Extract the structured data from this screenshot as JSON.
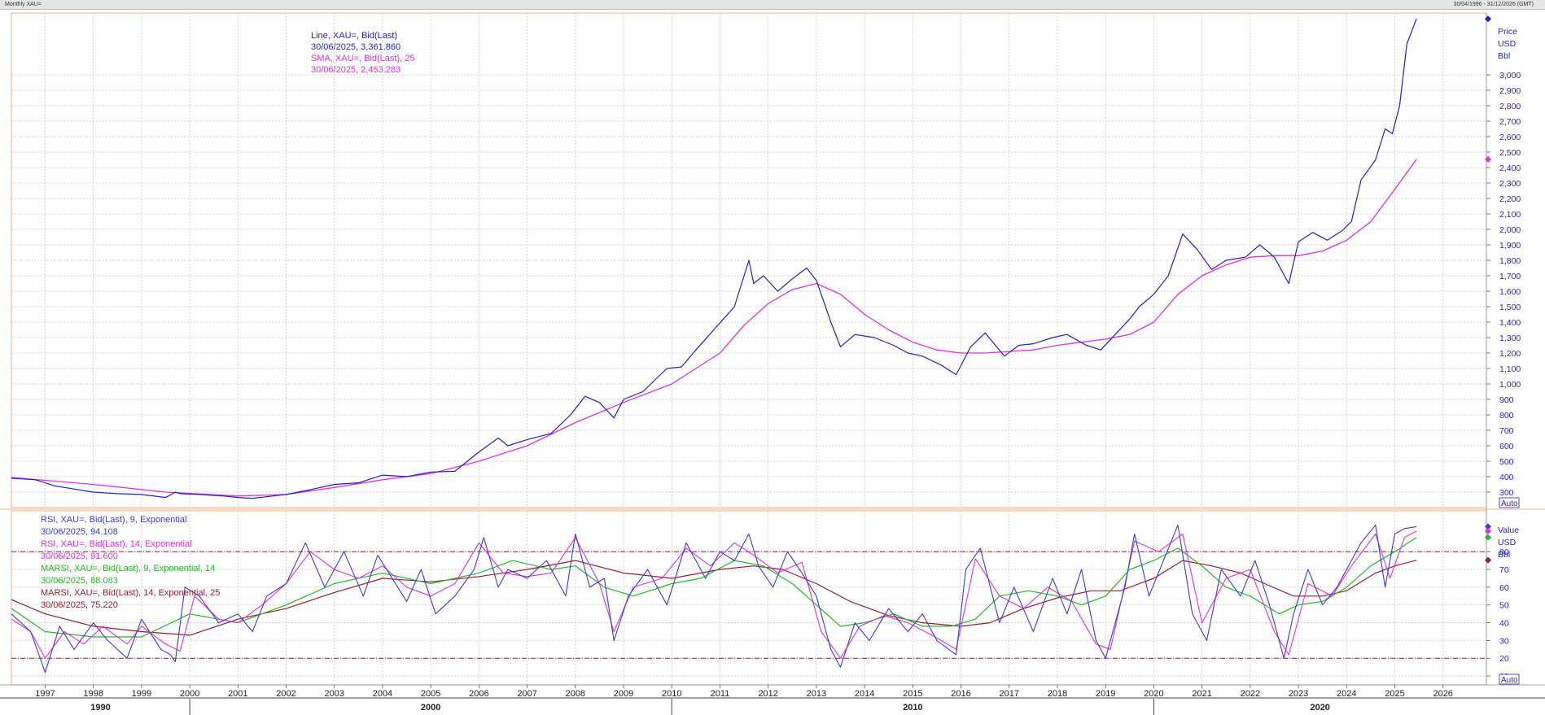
{
  "window": {
    "title": "Monthly XAU=",
    "range": "30/04/1996 - 31/12/2026 (GMT)"
  },
  "colors": {
    "price": "#1f1fd6",
    "sma": "#e52ee5",
    "rsi9": "#3a3ae0",
    "rsi14": "#e52ee5",
    "marsi9": "#22bb22",
    "marsi25": "#9b1d2d",
    "grid": "#c8c8c8",
    "border": "#f2b48a",
    "hline": "#9b1d2d"
  },
  "price_panel": {
    "legend": [
      {
        "text": "Line, XAU=, Bid(Last)",
        "color": "#1f1fd6"
      },
      {
        "text": "30/06/2025, 3,361.860",
        "color": "#1f1fd6"
      },
      {
        "text": "SMA, XAU=, Bid(Last),  25",
        "color": "#e52ee5"
      },
      {
        "text": "30/06/2025, 2,453.283",
        "color": "#e52ee5"
      }
    ],
    "axis_header": [
      "Price",
      "USD",
      "Bbl"
    ],
    "auto_label": "Auto"
  },
  "rsi_panel": {
    "legend": [
      {
        "text": "RSI, XAU=, Bid(Last),  9, Exponential",
        "color": "#3a3ae0"
      },
      {
        "text": "30/06/2025, 94.108",
        "color": "#3a3ae0"
      },
      {
        "text": "RSI, XAU=, Bid(Last),  14, Exponential",
        "color": "#e52ee5"
      },
      {
        "text": "30/06/2025, 91.600",
        "color": "#e52ee5"
      },
      {
        "text": "MARSI, XAU=, Bid(Last),  9, Exponential, 14",
        "color": "#22bb22"
      },
      {
        "text": "30/06/2025, 88.083",
        "color": "#22bb22"
      },
      {
        "text": "MARSI, XAU=, Bid(Last),  14, Exponential, 25",
        "color": "#9b1d2d"
      },
      {
        "text": "30/06/2025, 75.220",
        "color": "#9b1d2d"
      }
    ],
    "axis_header": [
      "Value",
      "USD",
      "Bbl"
    ],
    "auto_label": "Auto"
  },
  "chart_data": [
    {
      "type": "line",
      "panel": "price",
      "xlim": [
        1996.3,
        2026.9
      ],
      "ylim": [
        200,
        3400
      ],
      "y_ticks": [
        300,
        400,
        500,
        600,
        700,
        800,
        900,
        1000,
        1100,
        1200,
        1300,
        1400,
        1500,
        1600,
        1700,
        1800,
        1900,
        2000,
        2100,
        2200,
        2300,
        2400,
        2500,
        2600,
        2700,
        2800,
        2900,
        3000
      ],
      "y_tick_labels": [
        "300",
        "400",
        "500",
        "600",
        "700",
        "800",
        "900",
        "1,000",
        "1,100",
        "1,200",
        "1,300",
        "1,400",
        "1,500",
        "1,600",
        "1,700",
        "1,800",
        "1,900",
        "2,000",
        "2,100",
        "2,200",
        "2,300",
        "2,400",
        "2,500",
        "2,600",
        "2,700",
        "2,800",
        "2,900",
        "3,000"
      ],
      "grid": true,
      "series": [
        {
          "name": "Line, XAU=, Bid(Last)",
          "x": [
            1996.3,
            1996.8,
            1997.2,
            1997.6,
            1998.0,
            1998.5,
            1999.0,
            1999.5,
            1999.7,
            1999.8,
            2000.2,
            2000.7,
            2001.0,
            2001.3,
            2001.6,
            2002.0,
            2002.5,
            2003.0,
            2003.5,
            2004.0,
            2004.5,
            2005.0,
            2005.5,
            2006.0,
            2006.4,
            2006.6,
            2007.0,
            2007.5,
            2007.9,
            2008.2,
            2008.5,
            2008.8,
            2009.0,
            2009.4,
            2009.9,
            2010.2,
            2010.5,
            2010.9,
            2011.3,
            2011.6,
            2011.7,
            2011.9,
            2012.2,
            2012.5,
            2012.8,
            2013.0,
            2013.3,
            2013.5,
            2013.8,
            2014.2,
            2014.6,
            2014.9,
            2015.2,
            2015.6,
            2015.9,
            2016.2,
            2016.5,
            2016.9,
            2017.2,
            2017.5,
            2017.9,
            2018.2,
            2018.6,
            2018.9,
            2019.2,
            2019.5,
            2019.7,
            2020.0,
            2020.3,
            2020.6,
            2020.9,
            2021.2,
            2021.5,
            2021.9,
            2022.2,
            2022.5,
            2022.8,
            2023.0,
            2023.3,
            2023.6,
            2023.9,
            2024.1,
            2024.3,
            2024.6,
            2024.8,
            2024.95,
            2025.1,
            2025.25,
            2025.45
          ],
          "values": [
            390,
            380,
            340,
            320,
            300,
            290,
            285,
            265,
            300,
            290,
            285,
            275,
            265,
            260,
            270,
            285,
            315,
            350,
            360,
            410,
            400,
            430,
            435,
            560,
            650,
            600,
            640,
            680,
            800,
            920,
            880,
            780,
            900,
            950,
            1100,
            1110,
            1220,
            1360,
            1500,
            1800,
            1650,
            1700,
            1600,
            1680,
            1750,
            1670,
            1400,
            1240,
            1320,
            1300,
            1250,
            1200,
            1180,
            1120,
            1060,
            1240,
            1330,
            1180,
            1250,
            1260,
            1300,
            1320,
            1250,
            1220,
            1320,
            1420,
            1500,
            1580,
            1700,
            1970,
            1870,
            1740,
            1800,
            1820,
            1900,
            1820,
            1650,
            1920,
            1980,
            1930,
            1990,
            2050,
            2320,
            2450,
            2650,
            2620,
            2800,
            3200,
            3361.86
          ]
        },
        {
          "name": "SMA, XAU=, Bid(Last),  25",
          "x": [
            1996.3,
            1998.0,
            1999.5,
            2001.0,
            2002.0,
            2003.0,
            2004.0,
            2005.0,
            2006.0,
            2007.0,
            2008.0,
            2009.0,
            2010.0,
            2011.0,
            2011.5,
            2012.0,
            2012.5,
            2013.0,
            2013.5,
            2014.0,
            2014.5,
            2015.0,
            2015.5,
            2016.0,
            2016.5,
            2017.0,
            2017.5,
            2018.0,
            2018.5,
            2019.0,
            2019.5,
            2020.0,
            2020.5,
            2021.0,
            2021.5,
            2022.0,
            2022.5,
            2023.0,
            2023.5,
            2024.0,
            2024.5,
            2025.0,
            2025.45
          ],
          "values": [
            395,
            350,
            300,
            275,
            285,
            330,
            380,
            420,
            500,
            600,
            750,
            880,
            1000,
            1200,
            1380,
            1520,
            1610,
            1650,
            1580,
            1450,
            1350,
            1270,
            1220,
            1200,
            1200,
            1210,
            1220,
            1250,
            1270,
            1290,
            1320,
            1400,
            1580,
            1700,
            1770,
            1820,
            1830,
            1830,
            1860,
            1930,
            2050,
            2260,
            2453.283
          ]
        }
      ]
    },
    {
      "type": "line",
      "panel": "rsi",
      "xlim": [
        1996.3,
        2026.9
      ],
      "ylim": [
        5,
        103
      ],
      "y_ticks": [
        10,
        20,
        30,
        40,
        50,
        60,
        70,
        80
      ],
      "y_tick_labels": [
        "10",
        "20",
        "30",
        "40",
        "50",
        "60",
        "70",
        "80"
      ],
      "reference_lines": [
        80,
        20
      ],
      "grid": true,
      "x_ticks": [
        1997,
        1998,
        1999,
        2000,
        2001,
        2002,
        2003,
        2004,
        2005,
        2006,
        2007,
        2008,
        2009,
        2010,
        2011,
        2012,
        2013,
        2014,
        2015,
        2016,
        2017,
        2018,
        2019,
        2020,
        2021,
        2022,
        2023,
        2024,
        2025,
        2026
      ],
      "x_tick_labels": [
        "1997",
        "1998",
        "1999",
        "2000",
        "2001",
        "2002",
        "2003",
        "2004",
        "2005",
        "2006",
        "2007",
        "2008",
        "2009",
        "2010",
        "2011",
        "2012",
        "2013",
        "2014",
        "2015",
        "2016",
        "2017",
        "2018",
        "2019",
        "2020",
        "2021",
        "2022",
        "2023",
        "2024",
        "2025",
        "2026"
      ],
      "decade_labels": [
        {
          "x": 1996.3,
          "label": "1990"
        },
        {
          "x": 2000.0,
          "label": "2000"
        },
        {
          "x": 2010.0,
          "label": "2010"
        },
        {
          "x": 2020.0,
          "label": "2020"
        }
      ],
      "series": [
        {
          "name": "RSI, XAU=, Bid(Last),  9, Exponential",
          "x": [
            1996.3,
            1996.7,
            1997.0,
            1997.3,
            1997.6,
            1998.0,
            1998.3,
            1998.7,
            1999.0,
            1999.4,
            1999.6,
            1999.7,
            1999.9,
            2000.2,
            2000.6,
            2001.0,
            2001.3,
            2001.6,
            2002.0,
            2002.4,
            2002.8,
            2003.2,
            2003.6,
            2003.9,
            2004.2,
            2004.5,
            2004.8,
            2005.1,
            2005.5,
            2005.9,
            2006.1,
            2006.4,
            2006.6,
            2007.0,
            2007.4,
            2007.8,
            2008.0,
            2008.3,
            2008.6,
            2008.8,
            2009.1,
            2009.5,
            2009.9,
            2010.3,
            2010.7,
            2011.0,
            2011.3,
            2011.6,
            2011.8,
            2012.1,
            2012.4,
            2012.7,
            2013.0,
            2013.3,
            2013.5,
            2013.8,
            2014.1,
            2014.5,
            2014.9,
            2015.2,
            2015.5,
            2015.9,
            2016.1,
            2016.4,
            2016.8,
            2017.1,
            2017.5,
            2017.9,
            2018.2,
            2018.5,
            2018.8,
            2019.0,
            2019.4,
            2019.6,
            2019.9,
            2020.2,
            2020.5,
            2020.8,
            2021.1,
            2021.4,
            2021.8,
            2022.1,
            2022.4,
            2022.7,
            2022.9,
            2023.2,
            2023.5,
            2023.8,
            2024.0,
            2024.3,
            2024.6,
            2024.8,
            2025.0,
            2025.2,
            2025.45
          ],
          "values": [
            45,
            35,
            12,
            38,
            25,
            40,
            30,
            20,
            42,
            25,
            22,
            18,
            60,
            55,
            40,
            45,
            35,
            55,
            62,
            85,
            60,
            80,
            55,
            78,
            65,
            52,
            70,
            45,
            55,
            70,
            88,
            60,
            70,
            65,
            75,
            55,
            90,
            60,
            65,
            30,
            55,
            70,
            50,
            85,
            65,
            80,
            75,
            90,
            72,
            60,
            80,
            68,
            55,
            25,
            15,
            40,
            30,
            48,
            35,
            45,
            30,
            22,
            70,
            82,
            40,
            60,
            35,
            65,
            45,
            70,
            30,
            20,
            60,
            90,
            55,
            75,
            95,
            45,
            30,
            70,
            55,
            75,
            50,
            20,
            45,
            70,
            50,
            60,
            70,
            85,
            95,
            60,
            90,
            93,
            94.108
          ]
        },
        {
          "name": "RSI, XAU=, Bid(Last),  14, Exponential",
          "x": [
            1996.3,
            1996.7,
            1997.0,
            1997.4,
            1997.8,
            1998.2,
            1998.7,
            1999.0,
            1999.5,
            1999.8,
            2000.1,
            2000.6,
            2001.0,
            2001.5,
            2002.0,
            2002.5,
            2003.0,
            2003.5,
            2004.0,
            2004.5,
            2005.0,
            2005.5,
            2006.0,
            2006.5,
            2007.0,
            2007.5,
            2008.0,
            2008.5,
            2008.8,
            2009.2,
            2009.8,
            2010.3,
            2010.8,
            2011.3,
            2011.7,
            2012.2,
            2012.7,
            2013.1,
            2013.5,
            2013.9,
            2014.4,
            2014.9,
            2015.4,
            2015.9,
            2016.3,
            2016.8,
            2017.3,
            2017.8,
            2018.3,
            2018.8,
            2019.1,
            2019.6,
            2020.1,
            2020.6,
            2021.0,
            2021.5,
            2022.0,
            2022.5,
            2022.8,
            2023.2,
            2023.7,
            2024.1,
            2024.6,
            2024.9,
            2025.2,
            2025.45
          ],
          "values": [
            42,
            35,
            20,
            35,
            28,
            38,
            28,
            38,
            28,
            24,
            55,
            42,
            40,
            50,
            62,
            80,
            70,
            65,
            72,
            60,
            55,
            62,
            85,
            68,
            66,
            68,
            88,
            62,
            35,
            60,
            65,
            82,
            72,
            85,
            78,
            68,
            74,
            35,
            20,
            38,
            44,
            40,
            33,
            25,
            76,
            55,
            48,
            60,
            52,
            28,
            25,
            86,
            80,
            90,
            40,
            65,
            70,
            35,
            22,
            62,
            55,
            72,
            90,
            65,
            88,
            91.6
          ]
        },
        {
          "name": "MARSI, XAU=, Bid(Last),  9, Exponential, 14",
          "x": [
            1996.3,
            1997.0,
            1998.0,
            1999.0,
            2000.0,
            2001.0,
            2002.0,
            2003.0,
            2004.0,
            2005.0,
            2006.0,
            2006.7,
            2007.5,
            2008.0,
            2008.6,
            2009.2,
            2010.0,
            2010.6,
            2011.3,
            2011.9,
            2012.5,
            2013.0,
            2013.5,
            2014.0,
            2014.6,
            2015.2,
            2015.8,
            2016.3,
            2016.8,
            2017.4,
            2018.0,
            2018.5,
            2019.0,
            2019.5,
            2020.0,
            2020.5,
            2021.0,
            2021.5,
            2022.0,
            2022.6,
            2023.0,
            2023.5,
            2024.0,
            2024.5,
            2025.0,
            2025.45
          ],
          "values": [
            48,
            35,
            32,
            32,
            45,
            40,
            50,
            62,
            68,
            62,
            68,
            75,
            70,
            72,
            60,
            55,
            62,
            65,
            75,
            72,
            62,
            50,
            38,
            40,
            45,
            38,
            38,
            42,
            55,
            58,
            55,
            50,
            55,
            70,
            75,
            82,
            72,
            60,
            55,
            45,
            50,
            52,
            60,
            72,
            80,
            88.083
          ]
        },
        {
          "name": "MARSI, XAU=, Bid(Last),  14, Exponential, 25",
          "x": [
            1996.3,
            1997.0,
            1998.0,
            1999.0,
            2000.0,
            2001.0,
            2002.0,
            2003.0,
            2004.0,
            2005.0,
            2006.0,
            2007.0,
            2008.0,
            2009.0,
            2010.0,
            2011.0,
            2011.7,
            2012.3,
            2013.0,
            2013.7,
            2014.5,
            2015.2,
            2016.0,
            2016.6,
            2017.3,
            2018.0,
            2018.7,
            2019.3,
            2020.0,
            2020.6,
            2021.2,
            2021.8,
            2022.3,
            2022.9,
            2023.5,
            2024.0,
            2024.6,
            2025.0,
            2025.45
          ],
          "values": [
            53,
            45,
            38,
            35,
            33,
            42,
            48,
            57,
            65,
            63,
            66,
            70,
            75,
            68,
            65,
            70,
            72,
            70,
            62,
            52,
            44,
            40,
            38,
            40,
            48,
            54,
            58,
            58,
            65,
            75,
            72,
            68,
            62,
            55,
            55,
            58,
            68,
            72,
            75.22
          ]
        }
      ]
    }
  ]
}
